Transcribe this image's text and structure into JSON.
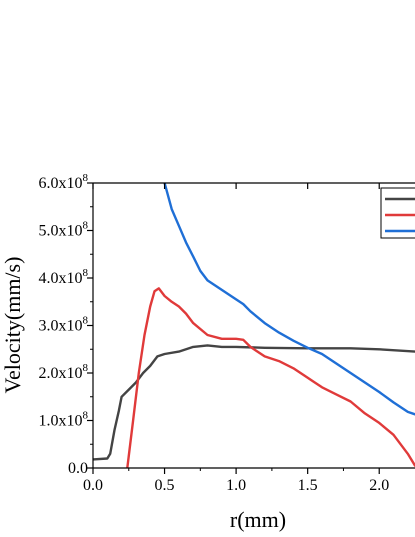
{
  "chart_data": {
    "type": "line",
    "title": "",
    "xlabel": "r(mm)",
    "ylabel": "Velocity(mm/s)",
    "xlim": [
      0,
      2.25
    ],
    "ylim": [
      0,
      600000000
    ],
    "grid": false,
    "legend": "top-right",
    "x_ticks": [
      {
        "value": 0.0,
        "label": "0.0"
      },
      {
        "value": 0.5,
        "label": "0.5"
      },
      {
        "value": 1.0,
        "label": "1.0"
      },
      {
        "value": 1.5,
        "label": "1.5"
      },
      {
        "value": 2.0,
        "label": "2.0"
      }
    ],
    "y_ticks": [
      {
        "value": 0,
        "mantissa": "0.0",
        "exp": ""
      },
      {
        "value": 100000000,
        "mantissa": "1.0x10",
        "exp": "8"
      },
      {
        "value": 200000000,
        "mantissa": "2.0x10",
        "exp": "8"
      },
      {
        "value": 300000000,
        "mantissa": "3.0x10",
        "exp": "8"
      },
      {
        "value": 400000000,
        "mantissa": "4.0x10",
        "exp": "8"
      },
      {
        "value": 500000000,
        "mantissa": "5.0x10",
        "exp": "8"
      },
      {
        "value": 600000000,
        "mantissa": "6.0x10",
        "exp": "8"
      }
    ],
    "series": [
      {
        "color": "#444444",
        "points": [
          [
            0.0,
            18000000
          ],
          [
            0.1,
            20000000
          ],
          [
            0.12,
            30000000
          ],
          [
            0.15,
            80000000
          ],
          [
            0.18,
            120000000
          ],
          [
            0.2,
            150000000
          ],
          [
            0.25,
            165000000
          ],
          [
            0.3,
            180000000
          ],
          [
            0.35,
            200000000
          ],
          [
            0.4,
            215000000
          ],
          [
            0.45,
            235000000
          ],
          [
            0.5,
            240000000
          ],
          [
            0.6,
            245000000
          ],
          [
            0.7,
            255000000
          ],
          [
            0.8,
            258000000
          ],
          [
            0.9,
            255000000
          ],
          [
            1.0,
            255000000
          ],
          [
            1.2,
            253000000
          ],
          [
            1.5,
            252000000
          ],
          [
            1.8,
            252000000
          ],
          [
            2.0,
            250000000
          ],
          [
            2.25,
            245000000
          ]
        ]
      },
      {
        "color": "#e03a3a",
        "points": [
          [
            0.24,
            0
          ],
          [
            0.28,
            100000000
          ],
          [
            0.32,
            200000000
          ],
          [
            0.36,
            280000000
          ],
          [
            0.4,
            340000000
          ],
          [
            0.43,
            372000000
          ],
          [
            0.46,
            378000000
          ],
          [
            0.5,
            362000000
          ],
          [
            0.55,
            350000000
          ],
          [
            0.6,
            340000000
          ],
          [
            0.65,
            325000000
          ],
          [
            0.7,
            305000000
          ],
          [
            0.8,
            280000000
          ],
          [
            0.9,
            272000000
          ],
          [
            1.0,
            272000000
          ],
          [
            1.05,
            270000000
          ],
          [
            1.1,
            255000000
          ],
          [
            1.2,
            235000000
          ],
          [
            1.3,
            225000000
          ],
          [
            1.4,
            210000000
          ],
          [
            1.5,
            190000000
          ],
          [
            1.6,
            170000000
          ],
          [
            1.7,
            155000000
          ],
          [
            1.8,
            140000000
          ],
          [
            1.9,
            115000000
          ],
          [
            2.0,
            95000000
          ],
          [
            2.1,
            70000000
          ],
          [
            2.2,
            30000000
          ],
          [
            2.25,
            5000000
          ]
        ]
      },
      {
        "color": "#1f6fd6",
        "points": [
          [
            0.5,
            600000000
          ],
          [
            0.55,
            545000000
          ],
          [
            0.6,
            510000000
          ],
          [
            0.65,
            475000000
          ],
          [
            0.7,
            445000000
          ],
          [
            0.75,
            415000000
          ],
          [
            0.8,
            395000000
          ],
          [
            0.9,
            375000000
          ],
          [
            1.0,
            355000000
          ],
          [
            1.05,
            345000000
          ],
          [
            1.1,
            330000000
          ],
          [
            1.2,
            305000000
          ],
          [
            1.3,
            285000000
          ],
          [
            1.4,
            268000000
          ],
          [
            1.5,
            253000000
          ],
          [
            1.6,
            240000000
          ],
          [
            1.7,
            220000000
          ],
          [
            1.8,
            200000000
          ],
          [
            1.9,
            180000000
          ],
          [
            2.0,
            160000000
          ],
          [
            2.1,
            138000000
          ],
          [
            2.2,
            118000000
          ],
          [
            2.25,
            113000000
          ]
        ]
      }
    ]
  }
}
